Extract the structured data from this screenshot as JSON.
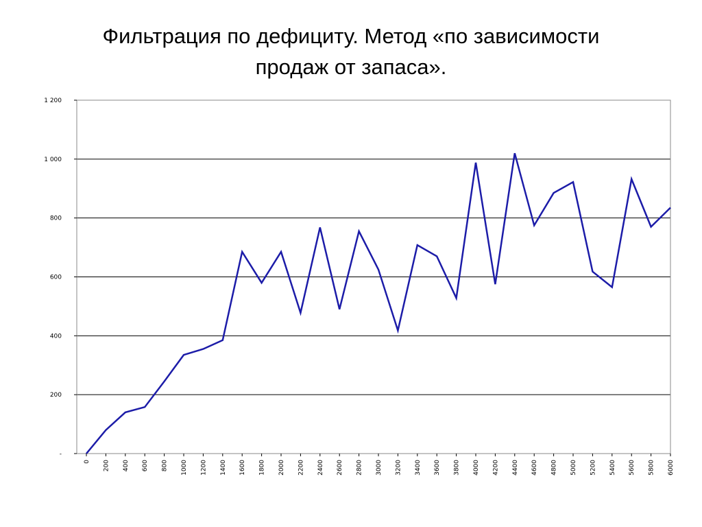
{
  "slide": {
    "title_line1": "Фильтрация по дефициту. Метод «по зависимости",
    "title_line2": "продаж от запаса»."
  },
  "chart_data": {
    "type": "line",
    "title": "Фильтрация по дефициту. Метод «по зависимости продаж от запаса».",
    "xlabel": "",
    "ylabel": "",
    "x": [
      0,
      200,
      400,
      600,
      800,
      1000,
      1200,
      1400,
      1600,
      1800,
      2000,
      2200,
      2400,
      2600,
      2800,
      3000,
      3200,
      3400,
      3600,
      3800,
      4000,
      4200,
      4400,
      4600,
      4800,
      5000,
      5200,
      5400,
      5600,
      5800,
      6000
    ],
    "x_tick_labels": [
      "0",
      "200",
      "400",
      "600",
      "800",
      "1000",
      "1200",
      "1400",
      "1600",
      "1800",
      "2000",
      "2200",
      "2400",
      "2600",
      "2800",
      "3000",
      "3200",
      "3400",
      "3600",
      "3800",
      "4000",
      "4200",
      "4400",
      "4600",
      "4800",
      "5000",
      "5200",
      "5400",
      "5600",
      "5800",
      "6000"
    ],
    "series": [
      {
        "values": [
          0,
          80,
          140,
          158,
          245,
          335,
          355,
          385,
          685,
          580,
          685,
          478,
          768,
          490,
          755,
          625,
          418,
          708,
          670,
          528,
          988,
          575,
          1020,
          775,
          885,
          922,
          618,
          565,
          932,
          770,
          835
        ],
        "color": "#1c1ca8"
      }
    ],
    "ylim": [
      0,
      1200
    ],
    "y_ticks": [
      0,
      200,
      400,
      600,
      800,
      1000,
      1200
    ],
    "y_tick_labels": [
      "-",
      "200",
      "400",
      "600",
      "800",
      "1 000",
      "1 200"
    ],
    "grid": true,
    "legend": "none"
  }
}
